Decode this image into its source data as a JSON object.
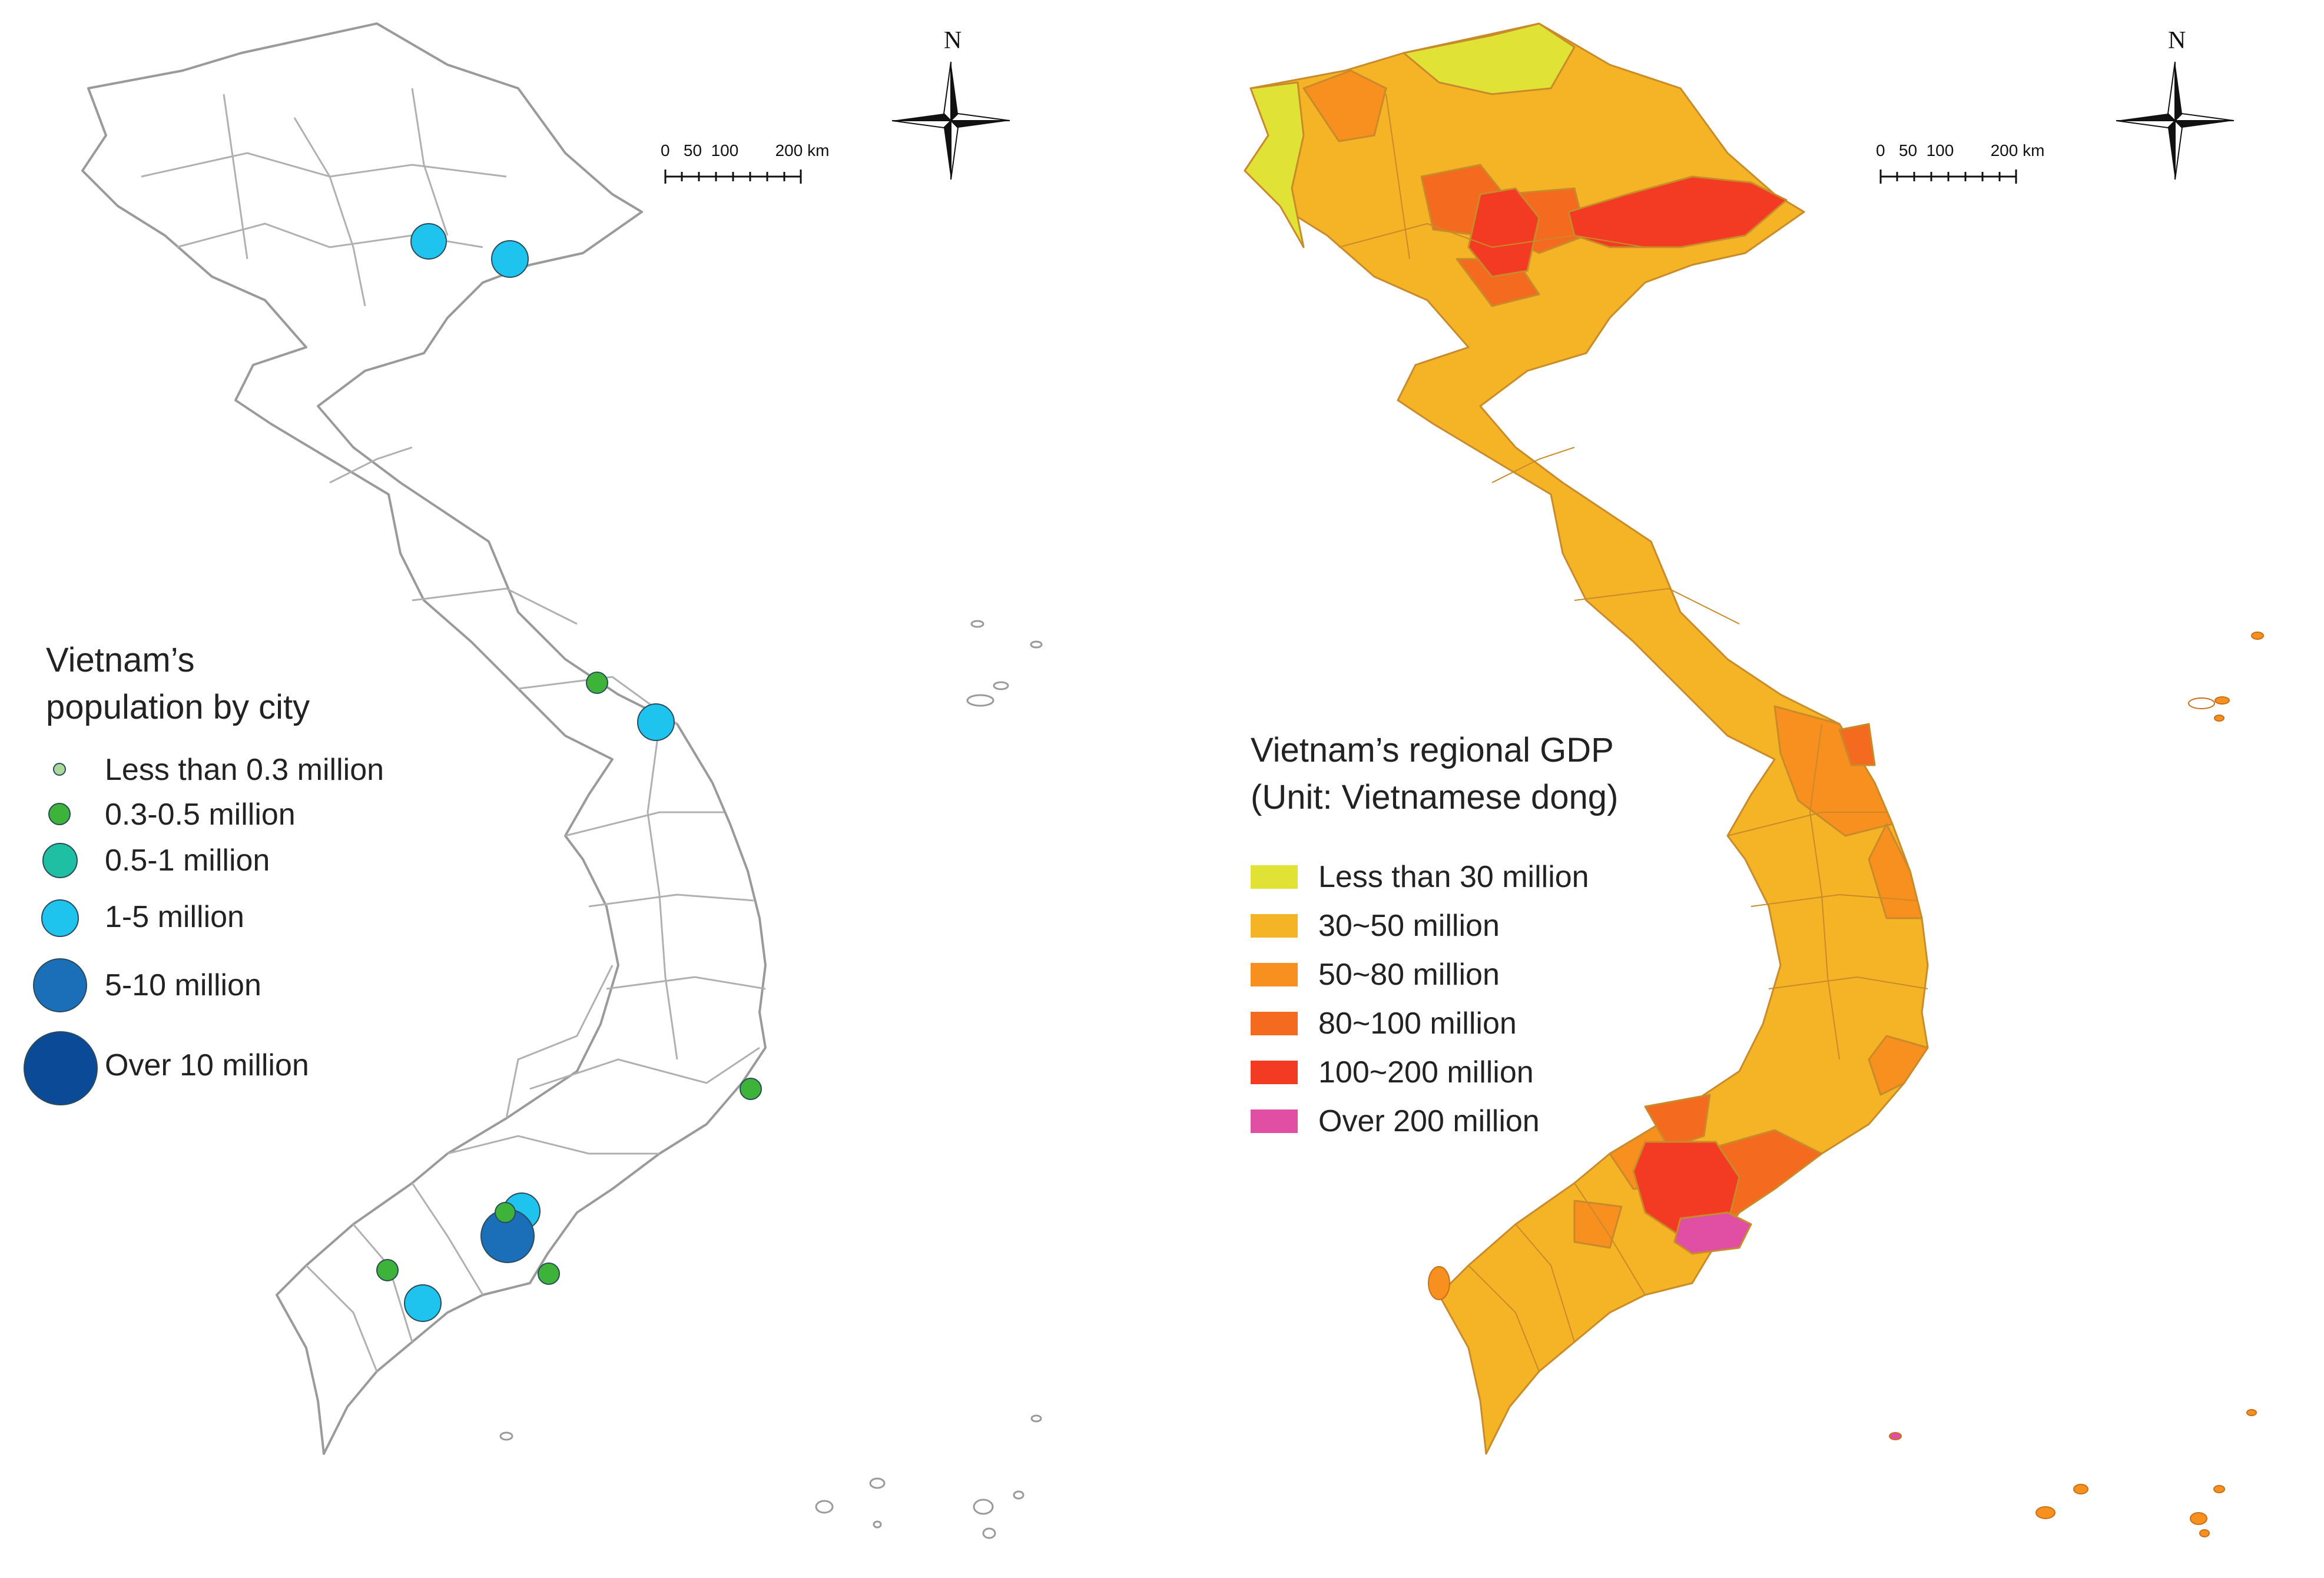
{
  "left_map": {
    "legend_title_line1": "Vietnam’s",
    "legend_title_line2": "population by city",
    "legend_items": [
      {
        "label": "Less than 0.3 million",
        "color": "#a8d89a"
      },
      {
        "label": "0.3-0.5 million",
        "color": "#3db33a"
      },
      {
        "label": "0.5-1 million",
        "color": "#1fbfa4"
      },
      {
        "label": "1-5 million",
        "color": "#1ec3ee"
      },
      {
        "label": "5-10 million",
        "color": "#1b6fb8"
      },
      {
        "label": "Over 10 million",
        "color": "#0b4a96"
      }
    ],
    "scale_numbers": "0   50  100        200",
    "scale_unit": "km",
    "north": "N"
  },
  "right_map": {
    "legend_title_line1": "Vietnam’s regional GDP",
    "legend_title_line2": "(Unit: Vietnamese dong)",
    "legend_items": [
      {
        "label": "Less than 30 million",
        "color": "#e0e236"
      },
      {
        "label": "30~50 million",
        "color": "#f5b326"
      },
      {
        "label": "50~80 million",
        "color": "#f7901e"
      },
      {
        "label": "80~100 million",
        "color": "#f46b1f"
      },
      {
        "label": "100~200 million",
        "color": "#f23b22"
      },
      {
        "label": "Over 200 million",
        "color": "#e14fa4"
      }
    ],
    "scale_numbers": "0   50  100        200",
    "scale_unit": "km",
    "north": "N"
  }
}
